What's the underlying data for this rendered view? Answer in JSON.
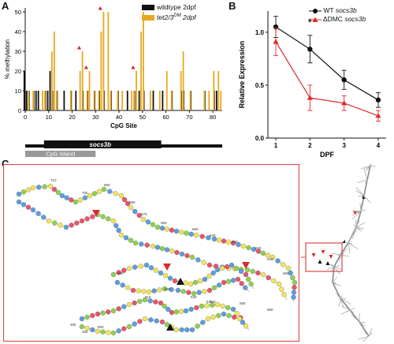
{
  "panels": {
    "a": "A",
    "b": "B",
    "c": "C"
  },
  "chart_data": [
    {
      "type": "bar",
      "title": "",
      "xlabel": "CpG Site",
      "ylabel": "% methylation",
      "xlim": [
        0,
        84
      ],
      "ylim": [
        0,
        52
      ],
      "xticks": [
        0,
        10,
        20,
        30,
        40,
        50,
        60,
        70,
        80
      ],
      "yticks": [
        0,
        10,
        20,
        30,
        40,
        50
      ],
      "series": [
        {
          "name": "wildtype 2dpf",
          "color": "#111111",
          "x": [
            0,
            1,
            2,
            4,
            5,
            6,
            9,
            10,
            11,
            12,
            14,
            17,
            20,
            22,
            25,
            27,
            30,
            32,
            34,
            37,
            40,
            44,
            47,
            49,
            51,
            55,
            59,
            63,
            67,
            68,
            71,
            77,
            81,
            82
          ],
          "values": [
            20,
            10,
            10,
            10,
            10,
            10,
            10,
            10,
            20,
            10,
            10,
            10,
            10,
            10,
            10,
            10,
            10,
            10,
            10,
            10,
            10,
            10,
            10,
            10,
            10,
            10,
            10,
            10,
            10,
            10,
            10,
            10,
            10,
            10
          ]
        },
        {
          "name": "tet2/3DM 2dpf",
          "color": "#E8A81F",
          "x": [
            1,
            3,
            7,
            8,
            11,
            12,
            13,
            19,
            23,
            24,
            26,
            27,
            29,
            31,
            32,
            33,
            35,
            36,
            39,
            41,
            45,
            46,
            47,
            49,
            50,
            53,
            57,
            60,
            62,
            66,
            67,
            70,
            76,
            78,
            80,
            82,
            83
          ],
          "values": [
            10,
            10,
            10,
            10,
            30,
            40,
            10,
            10,
            20,
            30,
            10,
            20,
            10,
            10,
            40,
            50,
            50,
            10,
            10,
            10,
            10,
            10,
            20,
            40,
            50,
            10,
            10,
            20,
            10,
            20,
            30,
            10,
            10,
            10,
            20,
            20,
            10
          ]
        }
      ],
      "markers": {
        "color": "#cc2222",
        "x": [
          23,
          26,
          32,
          46
        ]
      },
      "gene_label": "socs3b",
      "island_label": "CpG island"
    },
    {
      "type": "line",
      "title": "",
      "xlabel": "DPF",
      "ylabel": "Relative Expression",
      "x": [
        1,
        2,
        3,
        4
      ],
      "ylim": [
        0,
        1.2
      ],
      "yticks": [
        "0.0",
        "0.5",
        "1.0"
      ],
      "series": [
        {
          "name_prefix": "WT ",
          "name_gene": "socs3b",
          "color": "#111111",
          "marker": "circle",
          "values": [
            1.05,
            0.84,
            0.55,
            0.36
          ],
          "errors": [
            0.1,
            0.13,
            0.09,
            0.07
          ]
        },
        {
          "name_prefix": "ΔDMC ",
          "name_gene": "socs3b",
          "color": "#dd2b2b",
          "marker": "triangle",
          "values": [
            0.91,
            0.38,
            0.33,
            0.21
          ],
          "errors": [
            0.13,
            0.12,
            0.07,
            0.05
          ]
        }
      ],
      "annotations": [
        {
          "x": 2,
          "text": "*"
        }
      ]
    }
  ],
  "rna": {
    "numbers": [
      "480",
      "490",
      "500",
      "510",
      "520",
      "530",
      "540",
      "550",
      "560",
      "570",
      "580",
      "600",
      "610",
      "620",
      "630",
      "640",
      "650",
      "660",
      "670",
      "680",
      "690",
      "700",
      "710"
    ],
    "box_color": "#d94a4a",
    "base_colors": {
      "A": "#f2e45b",
      "C": "#5c9de0",
      "G": "#8fd14f",
      "U": "#e8546a"
    }
  }
}
